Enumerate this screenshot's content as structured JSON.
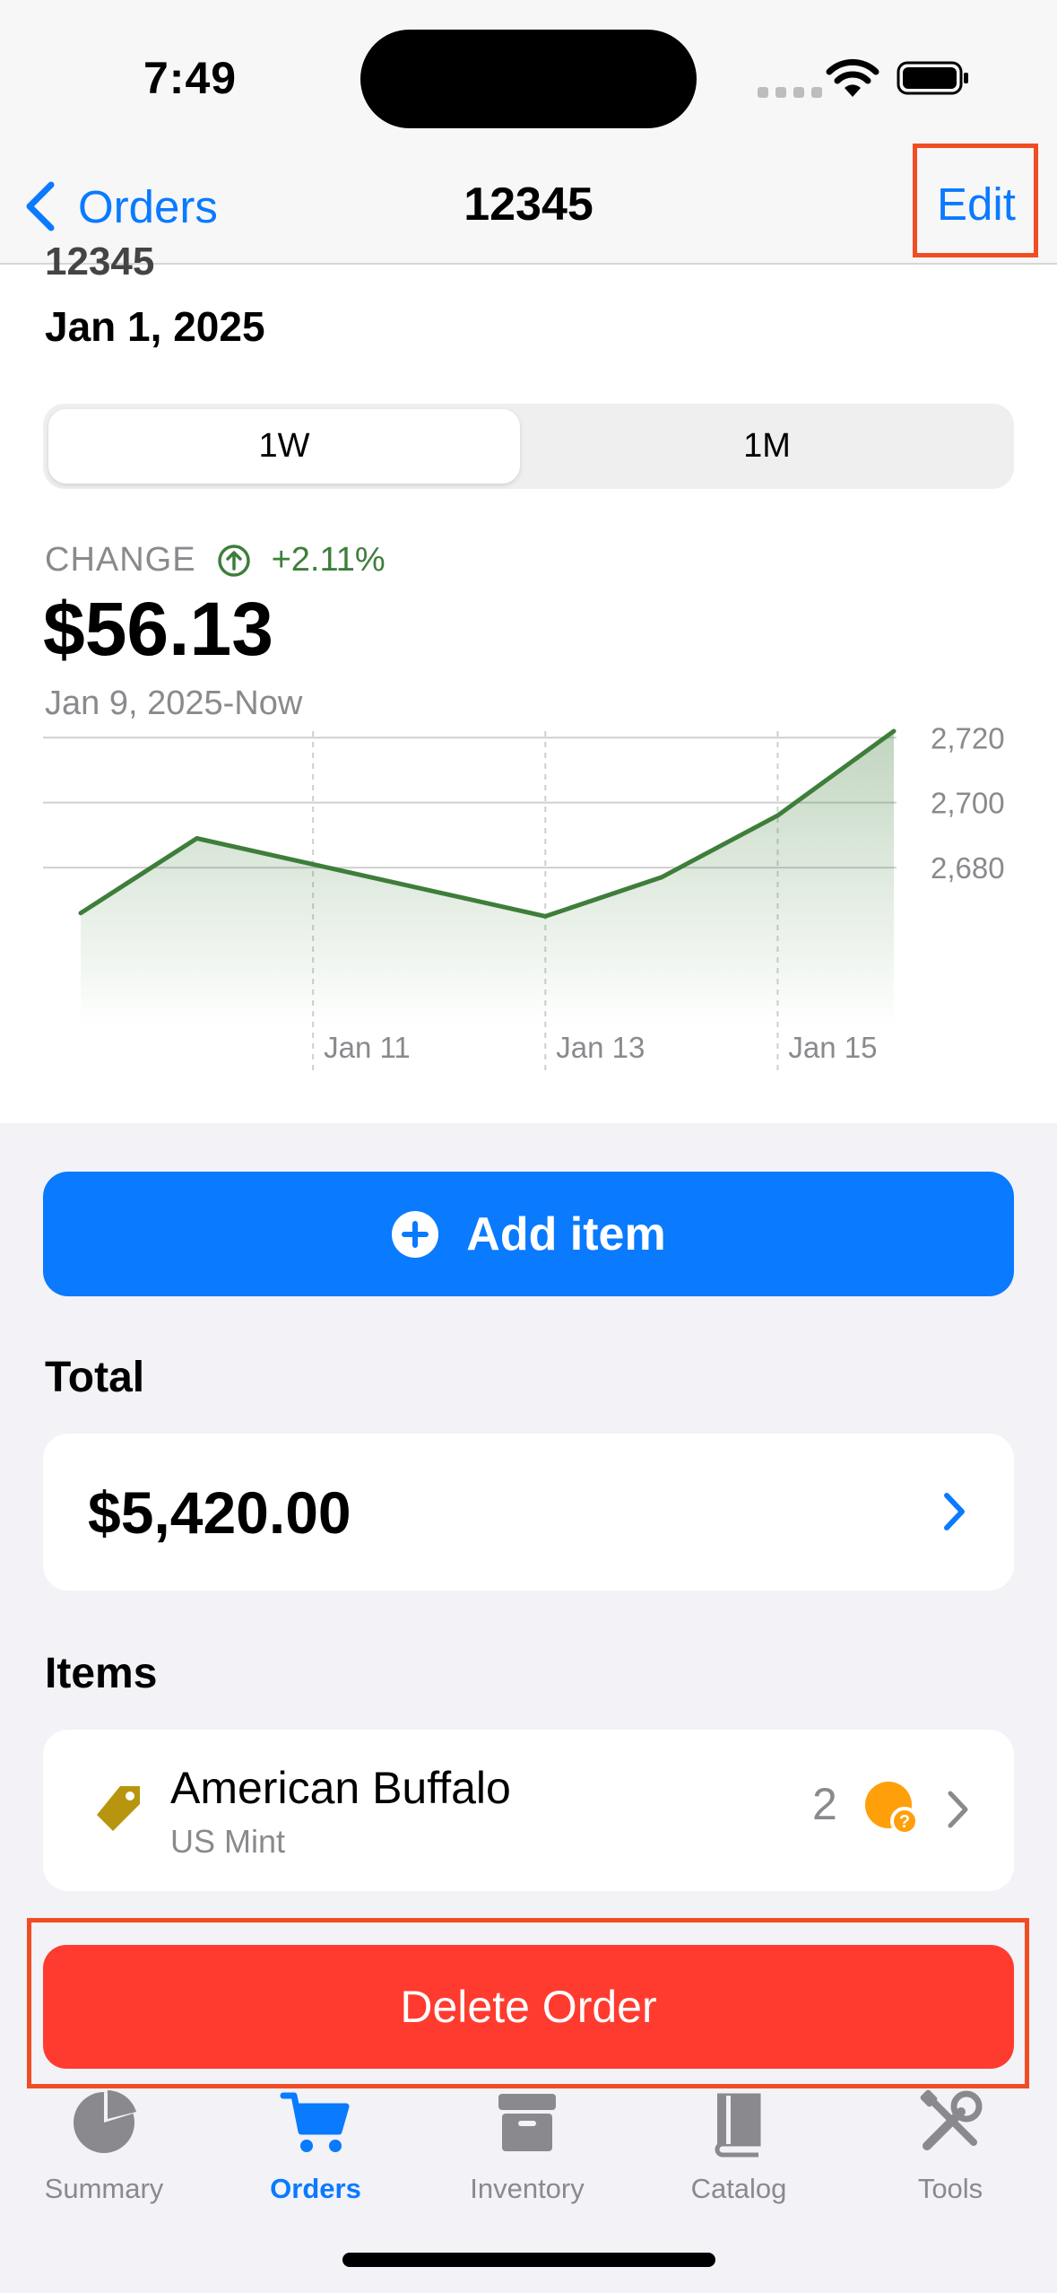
{
  "status_bar": {
    "time": "7:49"
  },
  "nav": {
    "back_label": "Orders",
    "title": "12345",
    "edit_label": "Edit"
  },
  "order": {
    "clipped_id": "12345",
    "date": "Jan 1, 2025"
  },
  "segmented": {
    "options": [
      "1W",
      "1M"
    ],
    "selected": "1W"
  },
  "change": {
    "label": "CHANGE",
    "value": "+2.11%",
    "amount": "$56.13",
    "range": "Jan 9, 2025-Now"
  },
  "chart_data": {
    "type": "area",
    "x": [
      "Jan 9",
      "Jan 10",
      "Jan 11",
      "Jan 12",
      "Jan 13",
      "Jan 14",
      "Jan 15",
      "Jan 16"
    ],
    "series": [
      {
        "values": [
          2666,
          2689,
          2681,
          2673,
          2665,
          2677,
          2696,
          2722
        ]
      }
    ],
    "x_tick_labels": [
      "Jan 11",
      "Jan 13",
      "Jan 15"
    ],
    "y_tick_labels": [
      "2,720",
      "2,700",
      "2,680"
    ],
    "y_ticks": [
      2720,
      2700,
      2680
    ],
    "ylim": [
      2664,
      2722
    ],
    "line_color": "#3e7e3a",
    "grid": true
  },
  "actions": {
    "add_item_label": "Add item",
    "delete_label": "Delete Order"
  },
  "total": {
    "section_title": "Total",
    "value": "$5,420.00"
  },
  "items": {
    "section_title": "Items",
    "list": [
      {
        "name": "American Buffalo",
        "subtitle": "US Mint",
        "quantity": "2",
        "icon": "tag-icon",
        "status_icon": "coin-question-icon"
      }
    ]
  },
  "tabs": [
    {
      "label": "Summary",
      "icon": "pie-chart-icon"
    },
    {
      "label": "Orders",
      "icon": "cart-icon",
      "active": true
    },
    {
      "label": "Inventory",
      "icon": "archive-box-icon"
    },
    {
      "label": "Catalog",
      "icon": "book-icon"
    },
    {
      "label": "Tools",
      "icon": "tools-icon"
    }
  ],
  "colors": {
    "accent": "#0a7aff",
    "positive": "#3e7e3a",
    "destructive": "#ff3b30",
    "highlight": "#f04d24"
  }
}
